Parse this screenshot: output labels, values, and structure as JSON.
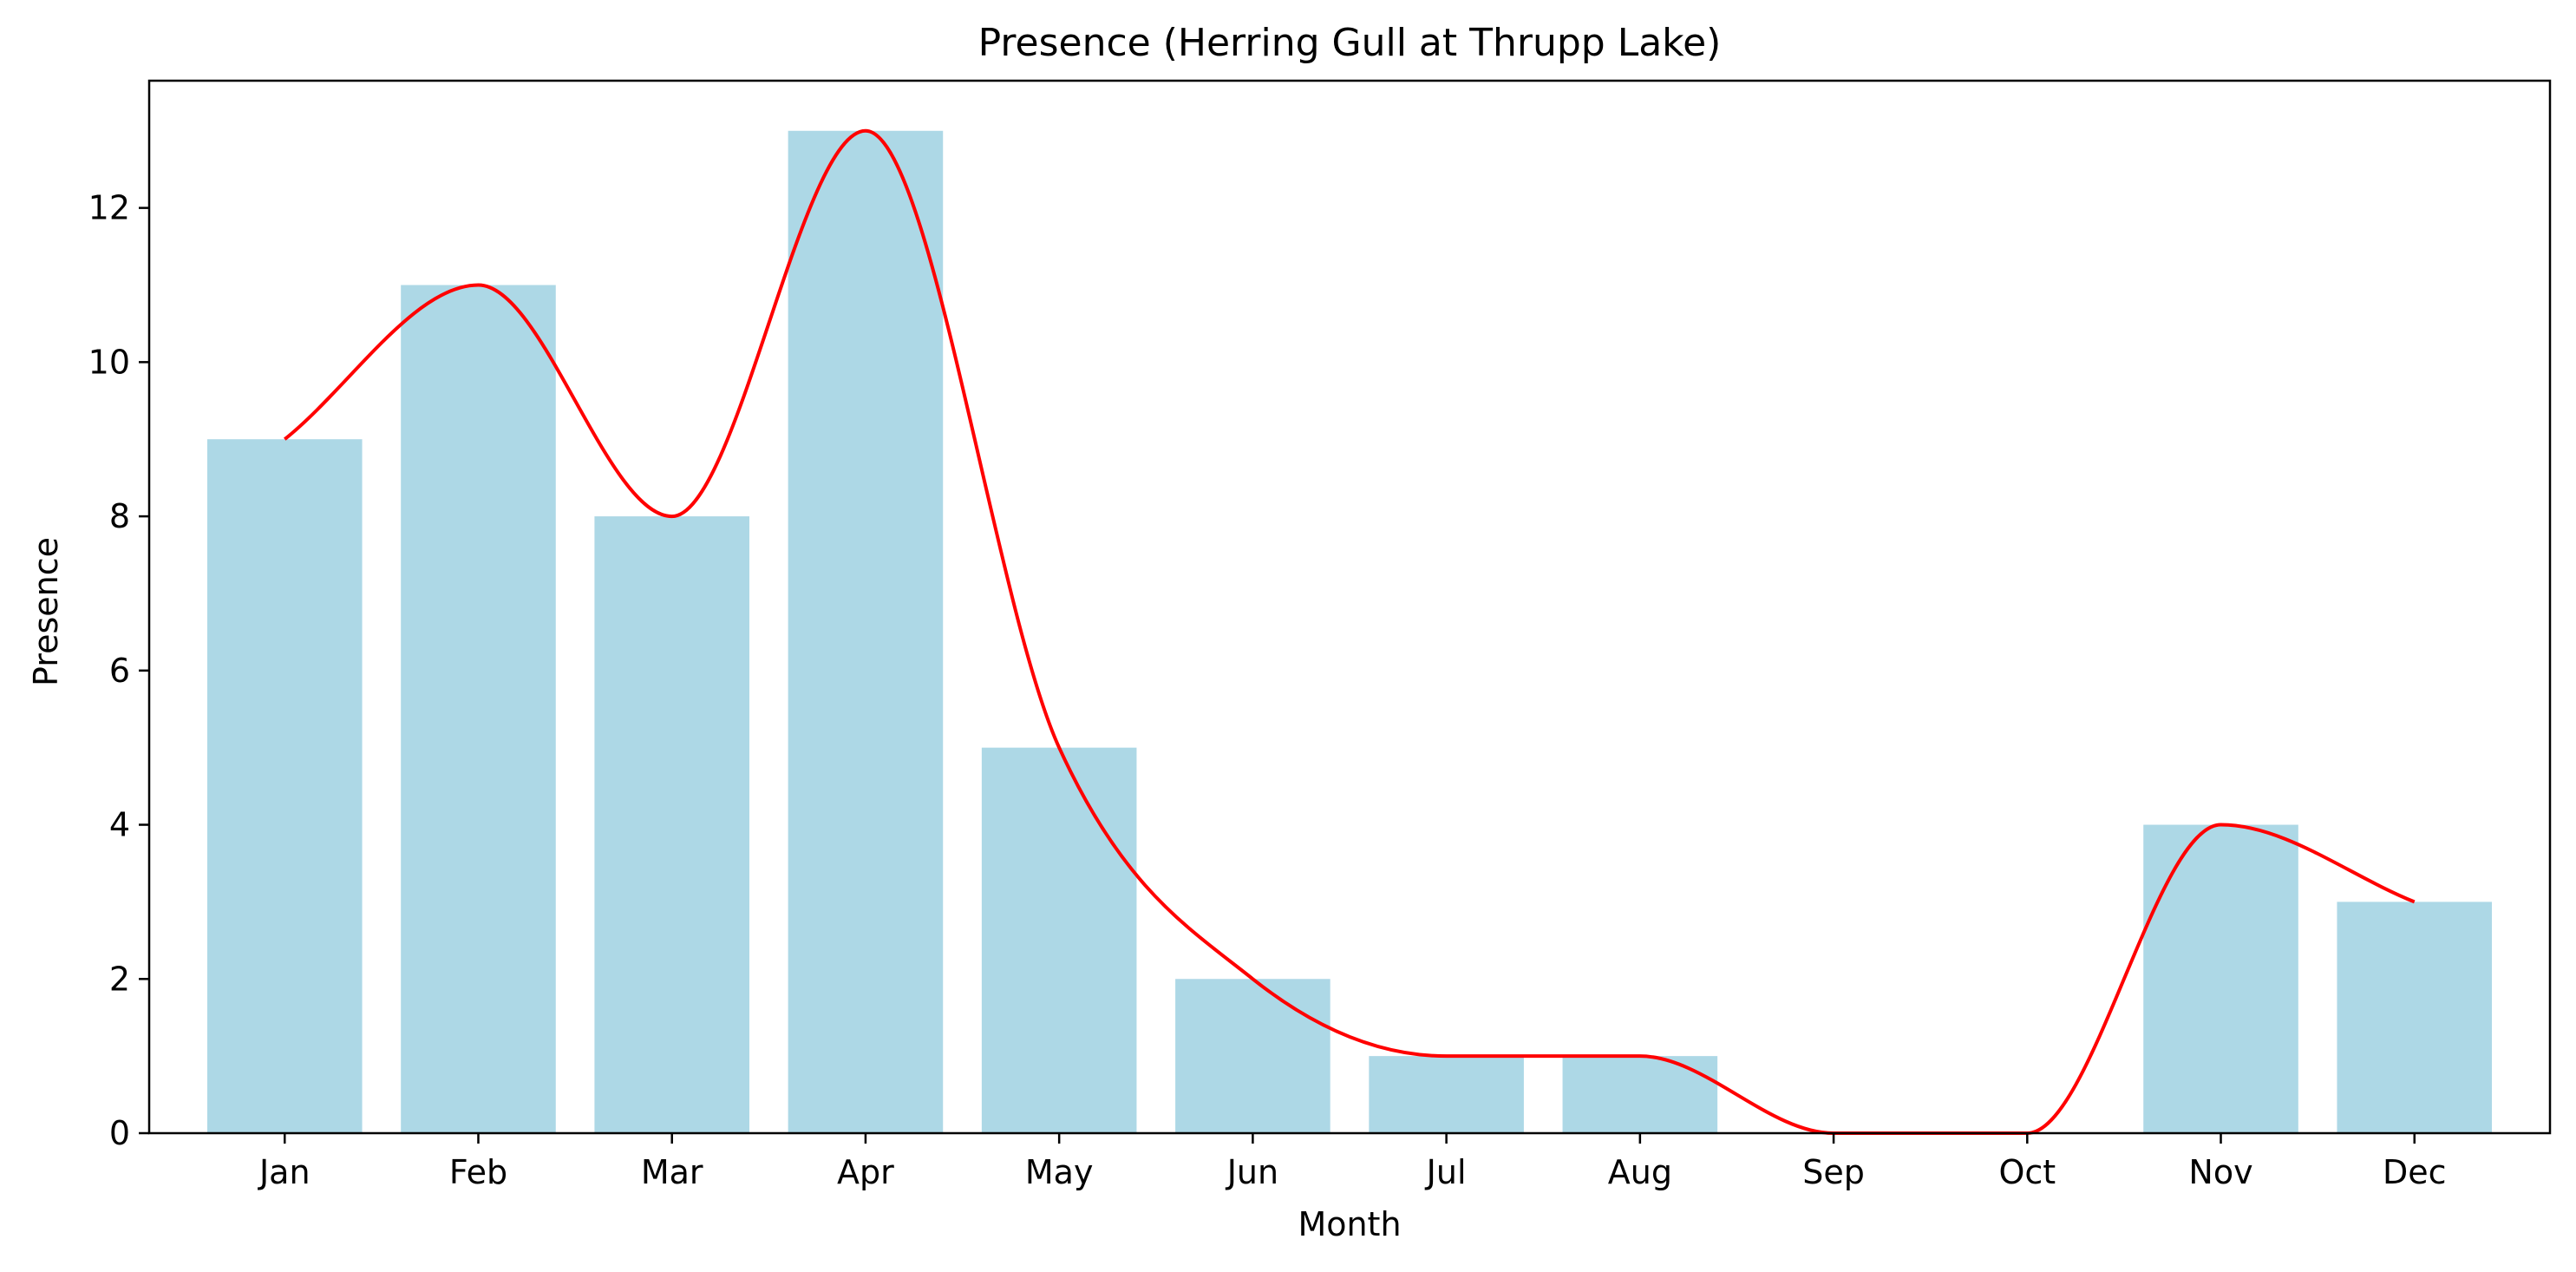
{
  "chart_data": {
    "type": "bar",
    "title": "Presence (Herring Gull at Thrupp Lake)",
    "xlabel": "Month",
    "ylabel": "Presence",
    "categories": [
      "Jan",
      "Feb",
      "Mar",
      "Apr",
      "May",
      "Jun",
      "Jul",
      "Aug",
      "Sep",
      "Oct",
      "Nov",
      "Dec"
    ],
    "values": [
      9,
      11,
      8,
      13,
      5,
      2,
      1,
      1,
      0,
      0,
      4,
      3
    ],
    "ylim": [
      0,
      13.65
    ],
    "yticks": [
      0,
      2,
      4,
      6,
      8,
      10,
      12
    ],
    "grid": false,
    "overlay": {
      "type": "line",
      "style": "smooth",
      "values": [
        9,
        11,
        8,
        13,
        5,
        2,
        1,
        1,
        0,
        0,
        4,
        3
      ]
    },
    "colors": {
      "bar": "#add8e6",
      "line": "#ff0000",
      "axes": "#000000"
    }
  }
}
